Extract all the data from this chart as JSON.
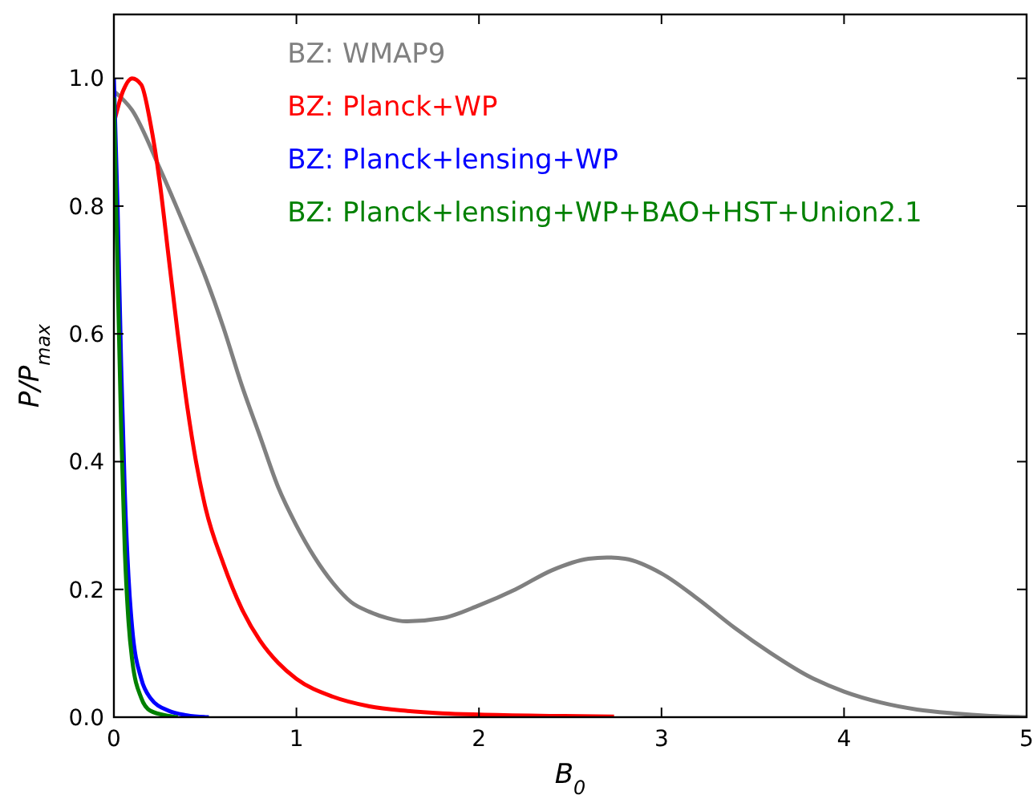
{
  "chart_data": {
    "type": "line",
    "xlabel": "B$_{0}$",
    "ylabel": "P/P$_{max}$",
    "xlim": [
      0,
      5
    ],
    "ylim": [
      0,
      1.1
    ],
    "xticks": [
      0,
      1,
      2,
      3,
      4,
      5
    ],
    "yticks": [
      {
        "value": 0,
        "label": "0.0"
      },
      {
        "value": 0.2,
        "label": "0.2"
      },
      {
        "value": 0.4,
        "label": "0.4"
      },
      {
        "value": 0.6,
        "label": "0.6"
      },
      {
        "value": 0.8,
        "label": "0.8"
      },
      {
        "value": 1,
        "label": "1.0"
      }
    ],
    "legend": "top",
    "grid": false,
    "series": [
      {
        "name": "BZ: WMAP9",
        "color": "#808080",
        "x": [
          0,
          0.1,
          0.25,
          0.4,
          0.5,
          0.6,
          0.7,
          0.8,
          0.9,
          1.0,
          1.1,
          1.2,
          1.3,
          1.4,
          1.5,
          1.6,
          1.8,
          2.0,
          2.2,
          2.4,
          2.6,
          2.7,
          2.8,
          3.0,
          3.2,
          3.4,
          3.6,
          3.8,
          4.0,
          4.2,
          4.4,
          4.6,
          4.8,
          5.0
        ],
        "values": [
          0.98,
          0.95,
          0.86,
          0.76,
          0.69,
          0.61,
          0.52,
          0.44,
          0.36,
          0.3,
          0.25,
          0.21,
          0.18,
          0.165,
          0.155,
          0.15,
          0.155,
          0.175,
          0.2,
          0.23,
          0.248,
          0.25,
          0.248,
          0.225,
          0.185,
          0.14,
          0.1,
          0.065,
          0.04,
          0.023,
          0.012,
          0.006,
          0.002,
          0
        ]
      },
      {
        "name": "BZ: Planck+WP",
        "color": "#ff0000",
        "x": [
          0,
          0.05,
          0.1,
          0.15,
          0.2,
          0.25,
          0.3,
          0.35,
          0.4,
          0.45,
          0.5,
          0.6,
          0.7,
          0.8,
          0.9,
          1.0,
          1.2,
          1.4,
          1.6,
          1.8,
          2.0,
          2.4,
          2.74
        ],
        "values": [
          0.93,
          0.98,
          1.0,
          0.99,
          0.93,
          0.84,
          0.72,
          0.6,
          0.49,
          0.4,
          0.33,
          0.24,
          0.17,
          0.12,
          0.085,
          0.06,
          0.032,
          0.017,
          0.01,
          0.006,
          0.004,
          0.002,
          0.001
        ]
      },
      {
        "name": "BZ: Planck+lensing+WP",
        "color": "#0000ff",
        "x": [
          0,
          0.02,
          0.04,
          0.06,
          0.08,
          0.1,
          0.15,
          0.2,
          0.3,
          0.4,
          0.52
        ],
        "values": [
          1.0,
          0.8,
          0.55,
          0.35,
          0.22,
          0.14,
          0.06,
          0.03,
          0.01,
          0.003,
          0
        ]
      },
      {
        "name": "BZ: Planck+lensing+WP+BAO+HST+Union2.1",
        "color": "#008000",
        "x": [
          0,
          0.02,
          0.04,
          0.06,
          0.08,
          0.1,
          0.15,
          0.2,
          0.3,
          0.35
        ],
        "values": [
          0.97,
          0.7,
          0.45,
          0.26,
          0.15,
          0.09,
          0.03,
          0.01,
          0.002,
          0
        ]
      }
    ]
  }
}
